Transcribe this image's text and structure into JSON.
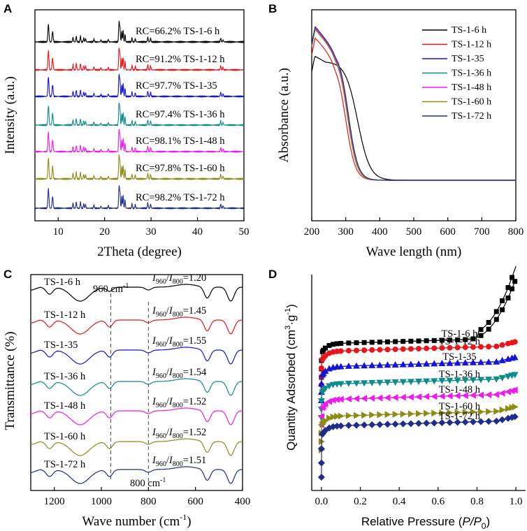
{
  "chart_data": [
    {
      "panel": "A",
      "type": "line",
      "xlabel": "2Theta (degree)",
      "ylabel": "Intensity (a.u.)",
      "xlim": [
        5,
        50
      ],
      "xticks": [
        "10",
        "20",
        "30",
        "40",
        "50"
      ],
      "series": [
        {
          "name": "TS-1-6 h",
          "annotation": "RC=66.2% TS-1-6 h",
          "color": "#000000"
        },
        {
          "name": "TS-1-12 h",
          "annotation": "RC=91.2% TS-1-12 h",
          "color": "#e8161b"
        },
        {
          "name": "TS-1-35",
          "annotation": "RC=97.7% TS-1-35",
          "color": "#1414d8"
        },
        {
          "name": "TS-1-36 h",
          "annotation": "RC=97.4% TS-1-36 h",
          "color": "#0e8c8c"
        },
        {
          "name": "TS-1-48 h",
          "annotation": "RC=98.1% TS-1-48 h",
          "color": "#ee1aee"
        },
        {
          "name": "TS-1-60 h",
          "annotation": "RC=97.8% TS-1-60 h",
          "color": "#8c8c14"
        },
        {
          "name": "TS-1-72 h",
          "annotation": "RC=98.2% TS-1-72 h",
          "color": "#1e2c8c"
        }
      ],
      "peaks_deg": [
        7.9,
        8.8,
        13.2,
        13.9,
        14.8,
        15.5,
        15.9,
        17.7,
        19.2,
        20.8,
        23.1,
        23.3,
        23.7,
        24.0,
        24.4,
        25.9,
        26.6,
        29.3,
        29.9,
        45.0,
        45.5
      ]
    },
    {
      "panel": "B",
      "type": "line",
      "xlabel": "Wave length (nm)",
      "ylabel": "Absorbance (a.u.)",
      "xlim": [
        200,
        800
      ],
      "xticks": [
        "200",
        "300",
        "400",
        "500",
        "600",
        "700",
        "800"
      ],
      "legend_position": "top-right",
      "series": [
        {
          "name": "TS-1-6 h",
          "color": "#000000"
        },
        {
          "name": "TS-1-12 h",
          "color": "#e8161b"
        },
        {
          "name": "TS-1-35",
          "color": "#1414d8"
        },
        {
          "name": "TS-1-36 h",
          "color": "#0e8c8c"
        },
        {
          "name": "TS-1-48 h",
          "color": "#ee1aee"
        },
        {
          "name": "TS-1-60 h",
          "color": "#8c8c14"
        },
        {
          "name": "TS-1-72 h",
          "color": "#1e2c8c"
        }
      ]
    },
    {
      "panel": "C",
      "type": "line",
      "xlabel": "Wave number (cm",
      "xlabel_sup": "-1",
      "xlabel_end": ")",
      "ylabel": "Transmittance (%)",
      "xlim": [
        1300,
        400
      ],
      "xticks": [
        "1200",
        "1000",
        "800",
        "600",
        "400"
      ],
      "markers": [
        {
          "label": "960 cm",
          "sup": "-1",
          "x": 960
        },
        {
          "label": "800 cm",
          "sup": "-1",
          "x": 800
        }
      ],
      "series": [
        {
          "name": "TS-1-6 h",
          "ratio": "1.20",
          "color": "#000000"
        },
        {
          "name": "TS-1-12 h",
          "ratio": "1.45",
          "color": "#e8161b"
        },
        {
          "name": "TS-1-35",
          "ratio": "1.55",
          "color": "#1414d8"
        },
        {
          "name": "TS-1-36 h",
          "ratio": "1.54",
          "color": "#0e8c8c"
        },
        {
          "name": "TS-1-48 h",
          "ratio": "1.52",
          "color": "#ee1aee"
        },
        {
          "name": "TS-1-60 h",
          "ratio": "1.52",
          "color": "#8c8c14"
        },
        {
          "name": "TS-1-72 h",
          "ratio": "1.51",
          "color": "#1e2c8c"
        }
      ],
      "ratio_symbol": "I",
      "ratio_sub_a": "960",
      "ratio_sub_b": "800"
    },
    {
      "panel": "D",
      "type": "line",
      "xlabel": "Relative Pressure (",
      "xlabel_italic": "P/P",
      "xlabel_sub": "0",
      "xlabel_end": ")",
      "ylabel": "Quantity Adsorbed (cm",
      "ylabel_sup1": "3",
      "ylabel_mid": "·g",
      "ylabel_sup2": "-1",
      "ylabel_end": ")",
      "xlim": [
        -0.05,
        1.05
      ],
      "xticks": [
        "0.0",
        "0.2",
        "0.4",
        "0.6",
        "0.8",
        "1.0"
      ],
      "series": [
        {
          "name": "TS-1-6 h",
          "marker": "square",
          "color": "#000000"
        },
        {
          "name": "TS-1-12 h",
          "marker": "circle",
          "color": "#e8161b"
        },
        {
          "name": "TS-1-35",
          "marker": "triangle-up",
          "color": "#1414d8"
        },
        {
          "name": "TS-1-36 h",
          "marker": "triangle-down",
          "color": "#0e8c8c"
        },
        {
          "name": "TS-1-48 h",
          "marker": "triangle-left",
          "color": "#ee1aee"
        },
        {
          "name": "TS-1-60 h",
          "marker": "triangle-right",
          "color": "#8c8c14"
        },
        {
          "name": "TS-1-72 h",
          "marker": "diamond",
          "color": "#1e2c8c"
        }
      ]
    }
  ]
}
